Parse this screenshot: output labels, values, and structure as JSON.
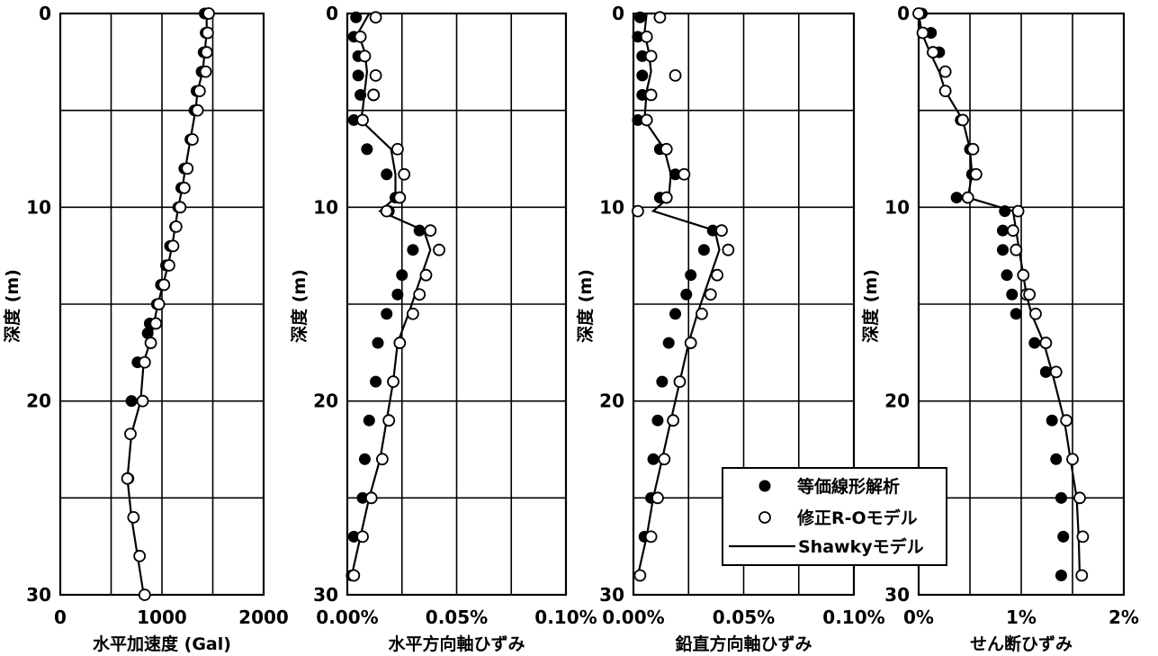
{
  "chart_data": [
    {
      "type": "scatter",
      "xlabel": "水平加速度 (Gal)",
      "ylabel": "深度 (m)",
      "xlim": [
        0,
        2000
      ],
      "ylim": [
        30,
        0
      ],
      "xticks": [
        "0",
        "1000",
        "2000"
      ],
      "yticks": [
        "0",
        "10",
        "20",
        "30"
      ],
      "grid": true,
      "series": [
        {
          "name": "等価線形解析",
          "marker": "filled",
          "x": [
            1420,
            1430,
            1410,
            1390,
            1340,
            1320,
            1280,
            1220,
            1190,
            1160,
            1130,
            1080,
            1040,
            990,
            950,
            880,
            860,
            760,
            700,
            670
          ],
          "y": [
            0,
            1,
            2,
            3,
            4,
            5,
            6.5,
            8,
            9,
            10,
            11,
            12,
            13,
            14,
            15,
            16,
            16.5,
            18,
            20,
            24
          ]
        },
        {
          "name": "修正R-Oモデル",
          "marker": "open",
          "x": [
            1460,
            1450,
            1440,
            1430,
            1370,
            1350,
            1300,
            1250,
            1220,
            1180,
            1140,
            1110,
            1070,
            1020,
            970,
            940,
            890,
            830,
            810,
            690,
            660,
            720,
            780,
            830
          ],
          "y": [
            0,
            1,
            2,
            3,
            4,
            5,
            6.5,
            8,
            9,
            10,
            11,
            12,
            13,
            14,
            15,
            16,
            17,
            18,
            20,
            21.7,
            24,
            26,
            28,
            30
          ]
        },
        {
          "name": "Shawkyモデル",
          "marker": "line",
          "x": [
            1440,
            1440,
            1420,
            1400,
            1350,
            1330,
            1280,
            1230,
            1200,
            1160,
            1130,
            1100,
            1060,
            1010,
            960,
            920,
            880,
            820,
            790,
            700,
            660,
            700,
            760,
            820
          ],
          "y": [
            0,
            1,
            2,
            3,
            4,
            5,
            6.5,
            8,
            9,
            10,
            11,
            12,
            13,
            14,
            15,
            16,
            17,
            18,
            20,
            21.7,
            24,
            26,
            28,
            30
          ]
        }
      ]
    },
    {
      "type": "scatter",
      "xlabel": "水平方向軸ひずみ",
      "ylabel": "深度 (m)",
      "xlim": [
        0,
        0.1
      ],
      "ylim": [
        30,
        0
      ],
      "xticks": [
        "0.00%",
        "0.05%",
        "0.10%"
      ],
      "yticks": [
        "0",
        "10",
        "20",
        "30"
      ],
      "grid": true,
      "series": [
        {
          "name": "等価線形解析",
          "marker": "filled",
          "x": [
            0.004,
            0.003,
            0.005,
            0.005,
            0.006,
            0.003,
            0.009,
            0.018,
            0.022,
            0.019,
            0.033,
            0.03,
            0.025,
            0.023,
            0.018,
            0.014,
            0.013,
            0.01,
            0.008,
            0.007,
            0.003,
            0.002
          ],
          "y": [
            0.2,
            1.2,
            2.2,
            3.2,
            4.2,
            5.5,
            7,
            8.3,
            9.5,
            10.2,
            11.2,
            12.2,
            13.5,
            14.5,
            15.5,
            17,
            19,
            21,
            23,
            25,
            27,
            29
          ]
        },
        {
          "name": "修正R-Oモデル",
          "marker": "open",
          "x": [
            0.013,
            0.006,
            0.008,
            0.013,
            0.012,
            0.012,
            0.007,
            0.023,
            0.026,
            0.024,
            0.018,
            0.038,
            0.042,
            0.036,
            0.033,
            0.03,
            0.024,
            0.021,
            0.019,
            0.016,
            0.011,
            0.007,
            0.003
          ],
          "y": [
            0.2,
            1.2,
            2.2,
            3.2,
            4.2,
            4.2,
            5.5,
            7,
            8.3,
            9.5,
            10.2,
            11.2,
            12.2,
            13.5,
            14.5,
            15.5,
            17,
            19,
            21,
            23,
            25,
            27,
            29
          ]
        },
        {
          "name": "Shawkyモデル",
          "marker": "line",
          "x": [
            0.01,
            0.005,
            0.008,
            0.009,
            0.008,
            0.007,
            0.006,
            0.02,
            0.022,
            0.022,
            0.015,
            0.035,
            0.038,
            0.034,
            0.031,
            0.028,
            0.023,
            0.021,
            0.018,
            0.015,
            0.01,
            0.006,
            0.002
          ],
          "y": [
            0,
            1,
            2,
            3,
            4,
            5,
            5.5,
            7,
            8.3,
            9.5,
            10.2,
            11.2,
            12.2,
            13.5,
            14.5,
            15.5,
            17,
            19,
            21,
            23,
            25,
            27,
            29
          ]
        }
      ]
    },
    {
      "type": "scatter",
      "xlabel": "鉛直方向軸ひずみ",
      "ylabel": "深度 (m)",
      "xlim": [
        0,
        0.1
      ],
      "ylim": [
        30,
        0
      ],
      "xticks": [
        "0.00%",
        "0.05%",
        "0.10%"
      ],
      "yticks": [
        "0",
        "10",
        "20",
        "30"
      ],
      "grid": true,
      "series": [
        {
          "name": "等価線形解析",
          "marker": "filled",
          "x": [
            0.003,
            0.002,
            0.004,
            0.004,
            0.004,
            0.002,
            0.012,
            0.019,
            0.012,
            0.036,
            0.032,
            0.026,
            0.024,
            0.019,
            0.016,
            0.013,
            0.011,
            0.009,
            0.008,
            0.005
          ],
          "y": [
            0.2,
            1.2,
            2.2,
            3.2,
            4.2,
            5.5,
            7,
            8.3,
            9.5,
            11.2,
            12.2,
            13.5,
            14.5,
            15.5,
            17,
            19,
            21,
            23,
            25,
            27
          ]
        },
        {
          "name": "修正R-Oモデル",
          "marker": "open",
          "x": [
            0.012,
            0.006,
            0.008,
            0.019,
            0.008,
            0.006,
            0.015,
            0.023,
            0.015,
            0.002,
            0.04,
            0.043,
            0.038,
            0.035,
            0.031,
            0.026,
            0.021,
            0.018,
            0.014,
            0.011,
            0.008,
            0.003
          ],
          "y": [
            0.2,
            1.2,
            2.2,
            3.2,
            4.2,
            5.5,
            7,
            8.3,
            9.5,
            10.2,
            11.2,
            12.2,
            13.5,
            14.5,
            15.5,
            17,
            19,
            21,
            23,
            25,
            27,
            29
          ]
        },
        {
          "name": "Shawkyモデル",
          "marker": "line",
          "x": [
            0.006,
            0.005,
            0.007,
            0.008,
            0.006,
            0.005,
            0.014,
            0.017,
            0.016,
            0.009,
            0.037,
            0.039,
            0.035,
            0.032,
            0.029,
            0.025,
            0.021,
            0.017,
            0.013,
            0.009,
            0.006,
            0.002
          ],
          "y": [
            0,
            1,
            2,
            3,
            4,
            5.5,
            7,
            8.3,
            9.5,
            10.2,
            11.2,
            12.2,
            13.5,
            14.5,
            15.5,
            17,
            19,
            21,
            23,
            25,
            27,
            29
          ]
        }
      ]
    },
    {
      "type": "scatter",
      "xlabel": "せん断ひずみ",
      "ylabel": "深度 (m)",
      "xlim": [
        0,
        2
      ],
      "ylim": [
        30,
        0
      ],
      "xticks": [
        "0%",
        "1%",
        "2%"
      ],
      "yticks": [
        "0",
        "10",
        "20",
        "30"
      ],
      "grid": true,
      "series": [
        {
          "name": "等価線形解析",
          "marker": "filled",
          "x": [
            0.03,
            0.12,
            0.2,
            0.26,
            0.41,
            0.5,
            0.52,
            0.37,
            0.84,
            0.82,
            0.82,
            0.86,
            0.91,
            0.95,
            1.13,
            1.24,
            1.3,
            1.34,
            1.39,
            1.41,
            1.39
          ],
          "y": [
            0,
            1,
            2,
            3,
            5.5,
            7,
            8.3,
            9.5,
            10.2,
            11.2,
            12.2,
            13.5,
            14.5,
            15.5,
            17,
            18.5,
            21,
            23,
            25,
            27,
            29
          ]
        },
        {
          "name": "修正R-Oモデル",
          "marker": "open",
          "x": [
            0,
            0.04,
            0.14,
            0.26,
            0.26,
            0.43,
            0.53,
            0.56,
            0.48,
            0.97,
            0.92,
            0.95,
            1.02,
            1.05,
            1.08,
            1.14,
            1.24,
            1.34,
            1.44,
            1.5,
            1.57,
            1.6,
            1.59
          ],
          "y": [
            0,
            1,
            2,
            3,
            4,
            5.5,
            7,
            8.3,
            9.5,
            10.2,
            11.2,
            12.2,
            13.5,
            14.5,
            14.5,
            15.5,
            17,
            18.5,
            21,
            23,
            25,
            27,
            29
          ]
        },
        {
          "name": "Shawkyモデル",
          "marker": "line",
          "x": [
            0,
            0.03,
            0.11,
            0.2,
            0.26,
            0.43,
            0.5,
            0.52,
            0.48,
            0.92,
            0.95,
            0.98,
            1.02,
            1.05,
            1.1,
            1.22,
            1.3,
            1.42,
            1.48,
            1.54,
            1.56,
            1.57
          ],
          "y": [
            0,
            1,
            2,
            3,
            4,
            5.5,
            7,
            8.3,
            9.5,
            10.2,
            11.2,
            12.2,
            13.5,
            14.5,
            15.5,
            17,
            18.5,
            21,
            23,
            25,
            27,
            29
          ]
        }
      ]
    }
  ],
  "legend": {
    "placement": "bottom-right of third panel",
    "items": [
      {
        "label": "等価線形解析",
        "marker": "filled"
      },
      {
        "label": "修正R-Oモデル",
        "marker": "open"
      },
      {
        "label": "Shawkyモデル",
        "marker": "line"
      }
    ]
  }
}
